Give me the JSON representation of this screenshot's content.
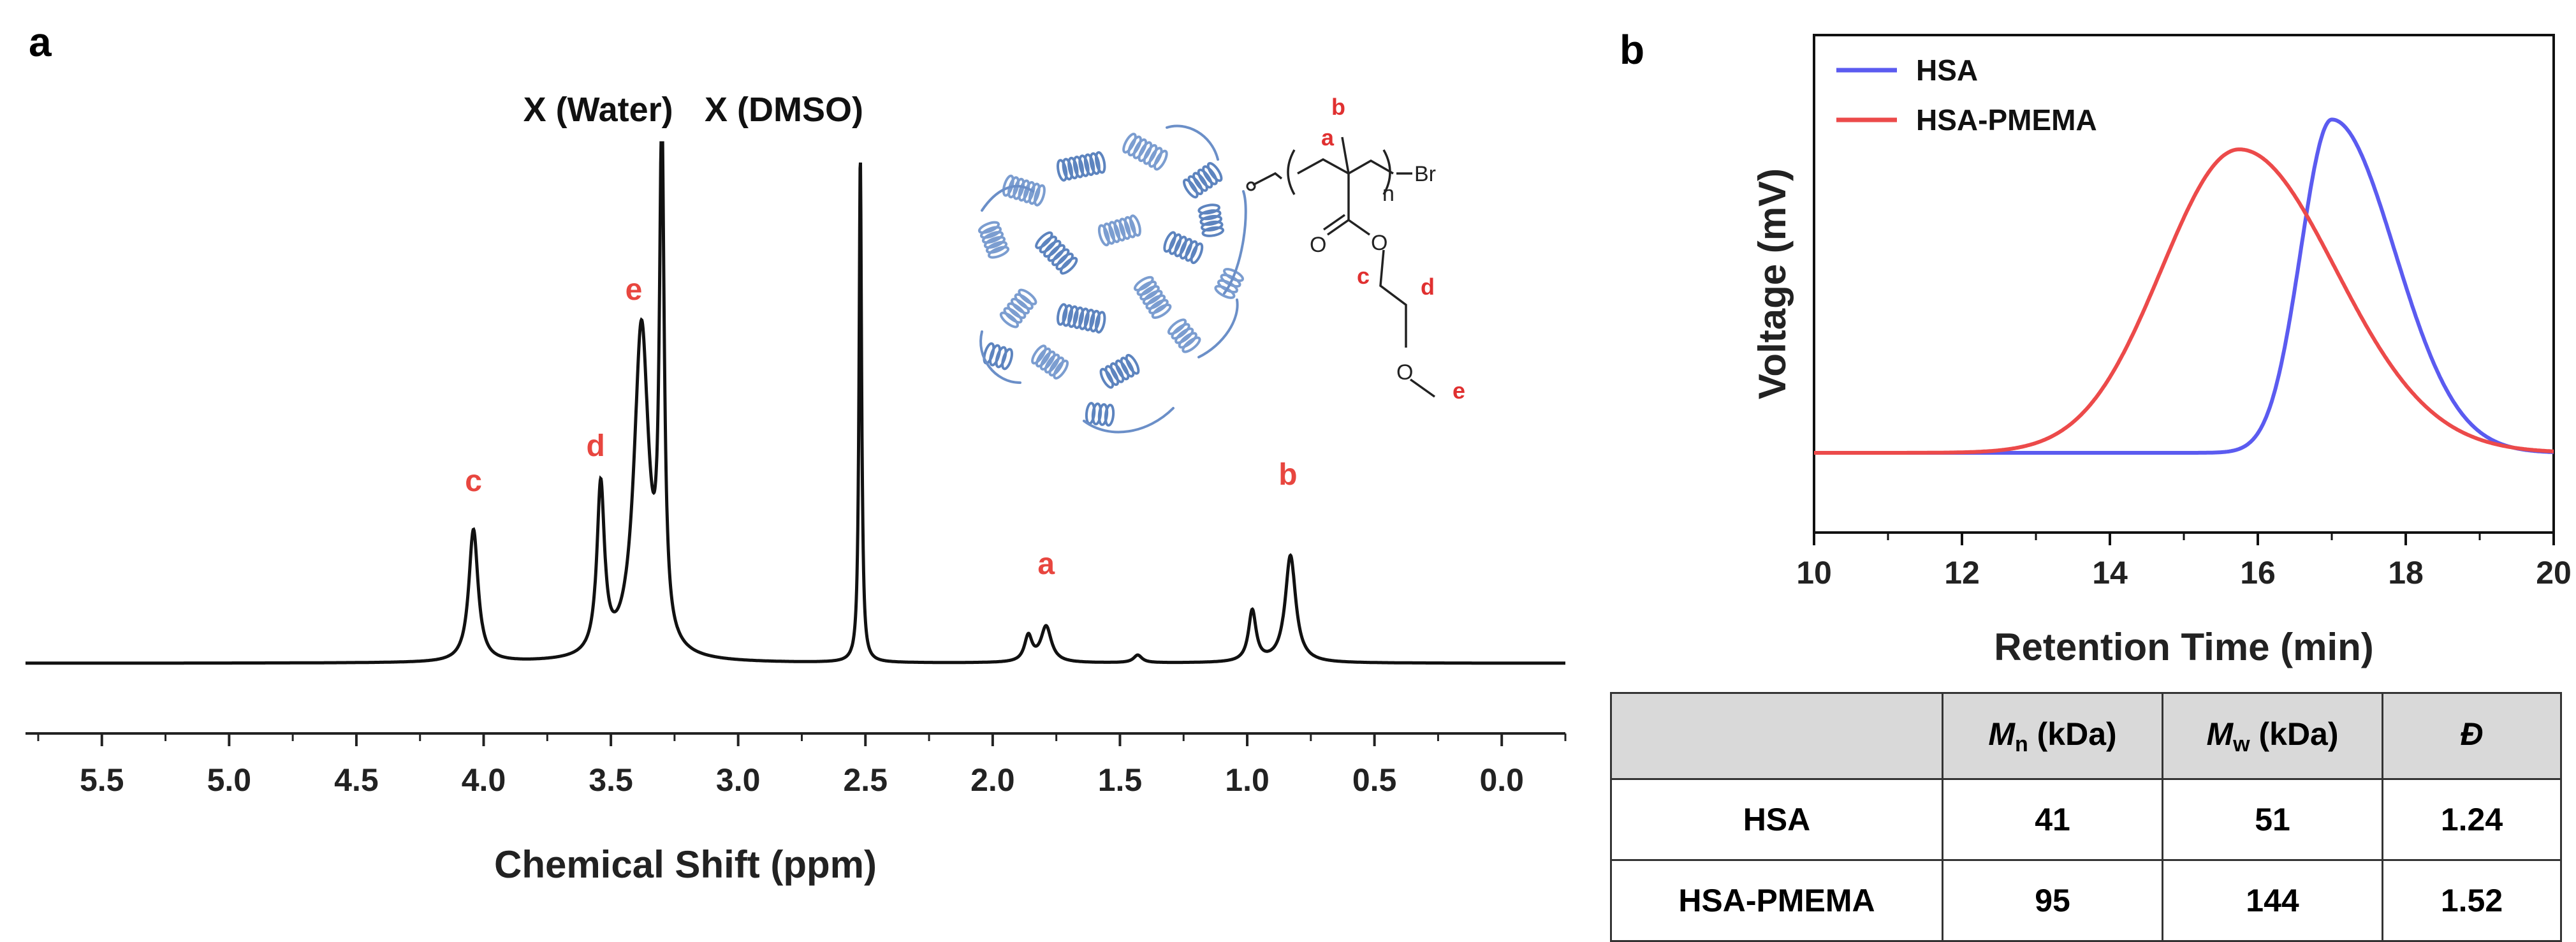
{
  "panels": {
    "a": {
      "letter": "a"
    },
    "b": {
      "letter": "b"
    }
  },
  "chart_data": [
    {
      "type": "line",
      "panel": "a",
      "xlabel": "Chemical Shift (ppm)",
      "ylabel": "",
      "xlim": [
        5.8,
        -0.25
      ],
      "x_reversed": true,
      "x_ticks": [
        "5.5",
        "5.0",
        "4.5",
        "4.0",
        "3.5",
        "3.0",
        "2.5",
        "2.0",
        "1.5",
        "1.0",
        "0.5",
        "0.0"
      ],
      "tick_values": [
        5.5,
        5.0,
        4.5,
        4.0,
        3.5,
        3.0,
        2.5,
        2.0,
        1.5,
        1.0,
        0.5,
        0.0
      ],
      "series": [
        {
          "color": "#111111",
          "peaks": [
            {
              "ppm": 4.04,
              "height": 0.26,
              "width": 0.022
            },
            {
              "ppm": 3.54,
              "height": 0.33,
              "width": 0.018
            },
            {
              "ppm": 3.38,
              "height": 0.65,
              "width": 0.035
            },
            {
              "ppm": 3.3,
              "height": 1.0,
              "width": 0.011
            },
            {
              "ppm": 2.52,
              "height": 0.99,
              "width": 0.006
            },
            {
              "ppm": 1.86,
              "height": 0.05,
              "width": 0.018
            },
            {
              "ppm": 1.79,
              "height": 0.07,
              "width": 0.025
            },
            {
              "ppm": 1.43,
              "height": 0.015,
              "width": 0.02
            },
            {
              "ppm": 0.98,
              "height": 0.1,
              "width": 0.018
            },
            {
              "ppm": 0.83,
              "height": 0.21,
              "width": 0.025
            }
          ]
        }
      ],
      "annotations": [
        {
          "text": "c",
          "ppm": 4.04,
          "kind": "peak"
        },
        {
          "text": "d",
          "ppm": 3.56,
          "kind": "peak"
        },
        {
          "text": "e",
          "ppm": 3.41,
          "kind": "peak"
        },
        {
          "text": "b",
          "ppm": 0.84,
          "kind": "peak"
        },
        {
          "text": "a",
          "ppm": 1.79,
          "kind": "peak"
        },
        {
          "text": "X (Water)",
          "ppm": 3.55,
          "kind": "solvent"
        },
        {
          "text": "X (DMSO)",
          "ppm": 2.82,
          "kind": "solvent"
        }
      ]
    },
    {
      "type": "line",
      "panel": "b",
      "xlabel": "Retention Time (min)",
      "ylabel": "Voltage (mV)",
      "xlim": [
        10,
        20
      ],
      "x_ticks": [
        "10",
        "12",
        "14",
        "16",
        "18",
        "20"
      ],
      "tick_values": [
        10,
        12,
        14,
        16,
        18,
        20
      ],
      "y_ticks_shown": false,
      "legend_position": "top-left",
      "series": [
        {
          "name": "HSA",
          "color": "#5b5bf0",
          "peak_x": 17.0,
          "height": 0.67,
          "sigma_left": 0.42,
          "sigma_right": 0.85
        },
        {
          "name": "HSA-PMEMA",
          "color": "#ec4a4a",
          "peak_x": 15.75,
          "height": 0.61,
          "sigma_left": 1.05,
          "sigma_right": 1.3
        }
      ]
    }
  ],
  "molecule": {
    "labels": [
      "a",
      "b",
      "c",
      "d",
      "e"
    ],
    "atoms": [
      "O",
      "O",
      "O",
      "Br"
    ],
    "subscript": "n"
  },
  "table": {
    "headers": [
      {
        "text": ""
      },
      {
        "symbol": "M",
        "sub": "n",
        "unit": " (kDa)"
      },
      {
        "symbol": "M",
        "sub": "w",
        "unit": " (kDa)"
      },
      {
        "symbol": "Đ",
        "sub": "",
        "unit": ""
      }
    ],
    "rows": [
      {
        "name": "HSA",
        "mn": "41",
        "mw": "51",
        "d": "1.24"
      },
      {
        "name": "HSA-PMEMA",
        "mn": "95",
        "mw": "144",
        "d": "1.52"
      }
    ]
  }
}
